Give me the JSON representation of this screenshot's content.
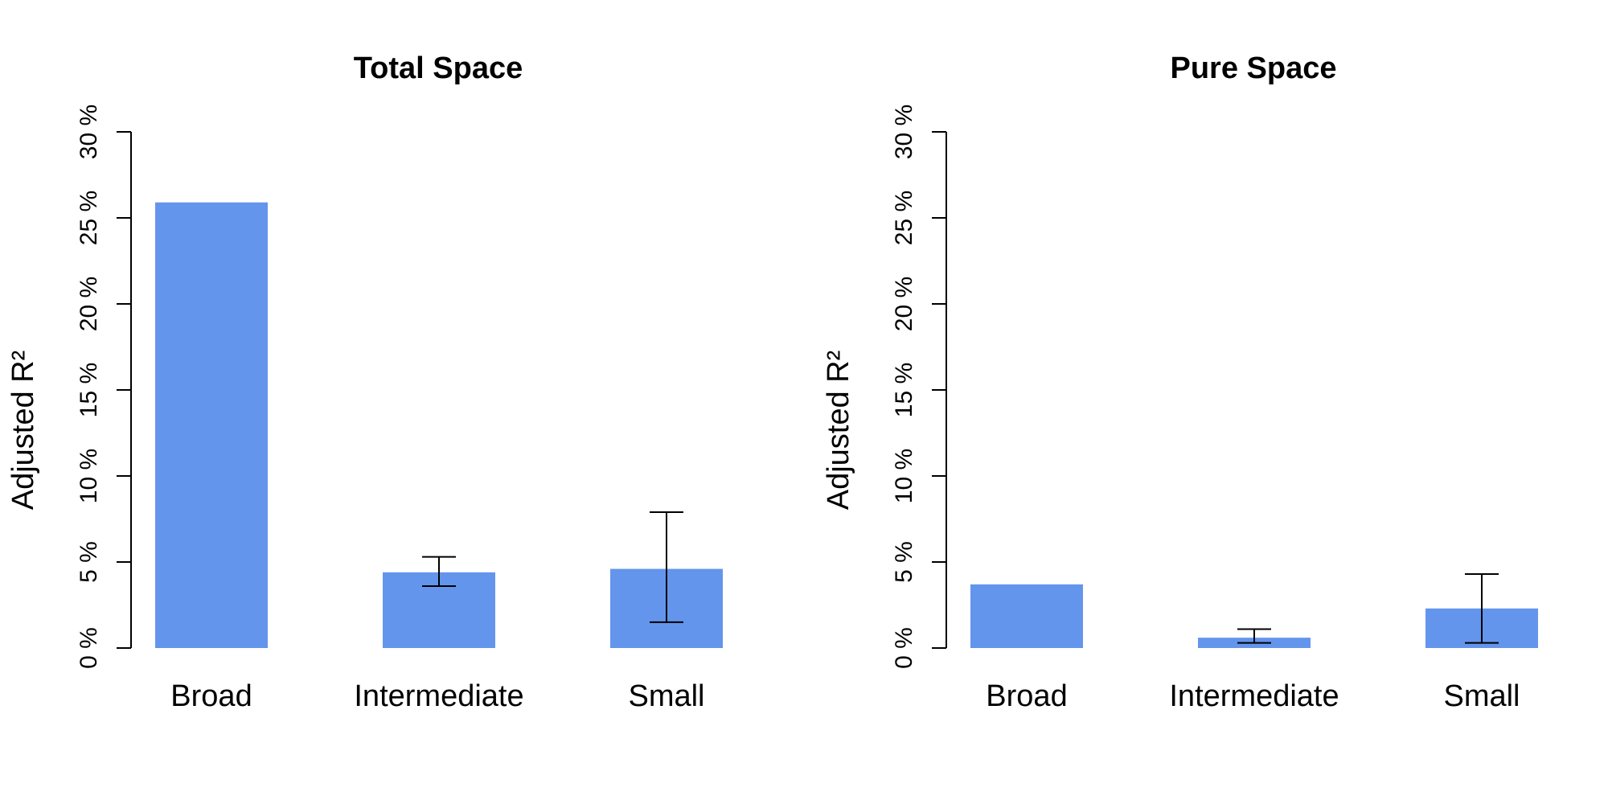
{
  "chart_data": [
    {
      "type": "bar",
      "title": "Total Space",
      "xlabel": "",
      "ylabel": "Adjusted R²",
      "categories": [
        "Broad",
        "Intermediate",
        "Small"
      ],
      "values": [
        25.9,
        4.4,
        4.6
      ],
      "error_low": [
        null,
        3.6,
        1.5
      ],
      "error_high": [
        null,
        5.3,
        7.9
      ],
      "ylim": [
        0,
        30
      ],
      "yticks": [
        0,
        5,
        10,
        15,
        20,
        25,
        30
      ],
      "ytick_labels": [
        "0 %",
        "5 %",
        "10 %",
        "15 %",
        "20 %",
        "25 %",
        "30 %"
      ],
      "bar_color": "#6495ED",
      "grid": false
    },
    {
      "type": "bar",
      "title": "Pure Space",
      "xlabel": "",
      "ylabel": "Adjusted R²",
      "categories": [
        "Broad",
        "Intermediate",
        "Small"
      ],
      "values": [
        3.7,
        0.6,
        2.3
      ],
      "error_low": [
        null,
        0.3,
        0.3
      ],
      "error_high": [
        null,
        1.1,
        4.3
      ],
      "ylim": [
        0,
        30
      ],
      "yticks": [
        0,
        5,
        10,
        15,
        20,
        25,
        30
      ],
      "ytick_labels": [
        "0 %",
        "5 %",
        "10 %",
        "15 %",
        "20 %",
        "25 %",
        "30 %"
      ],
      "bar_color": "#6495ED",
      "grid": false
    }
  ]
}
